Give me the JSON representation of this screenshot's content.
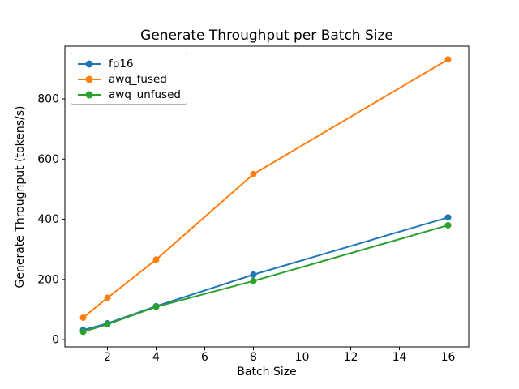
{
  "chart_data": {
    "type": "line",
    "title": "Generate Throughput per Batch Size",
    "xlabel": "Batch Size",
    "ylabel": "Generate Throughput (tokens/s)",
    "x": [
      1,
      2,
      4,
      8,
      16
    ],
    "series": [
      {
        "name": "fp16",
        "color": "#1f77b4",
        "values": [
          32,
          54,
          111,
          216,
          406
        ]
      },
      {
        "name": "awq_fused",
        "color": "#ff7f0e",
        "values": [
          73,
          139,
          266,
          550,
          931
        ]
      },
      {
        "name": "awq_unfused",
        "color": "#2ca02c",
        "values": [
          26,
          51,
          109,
          195,
          380
        ]
      }
    ],
    "xticks": [
      2,
      4,
      6,
      8,
      10,
      12,
      14,
      16
    ],
    "yticks": [
      0,
      200,
      400,
      600,
      800
    ],
    "xlim": [
      0.25,
      16.85
    ],
    "ylim": [
      -24,
      975
    ],
    "grid": false,
    "legend_position": "upper left",
    "marker": "o",
    "axis_color": "#000000",
    "background_color": "#ffffff"
  }
}
